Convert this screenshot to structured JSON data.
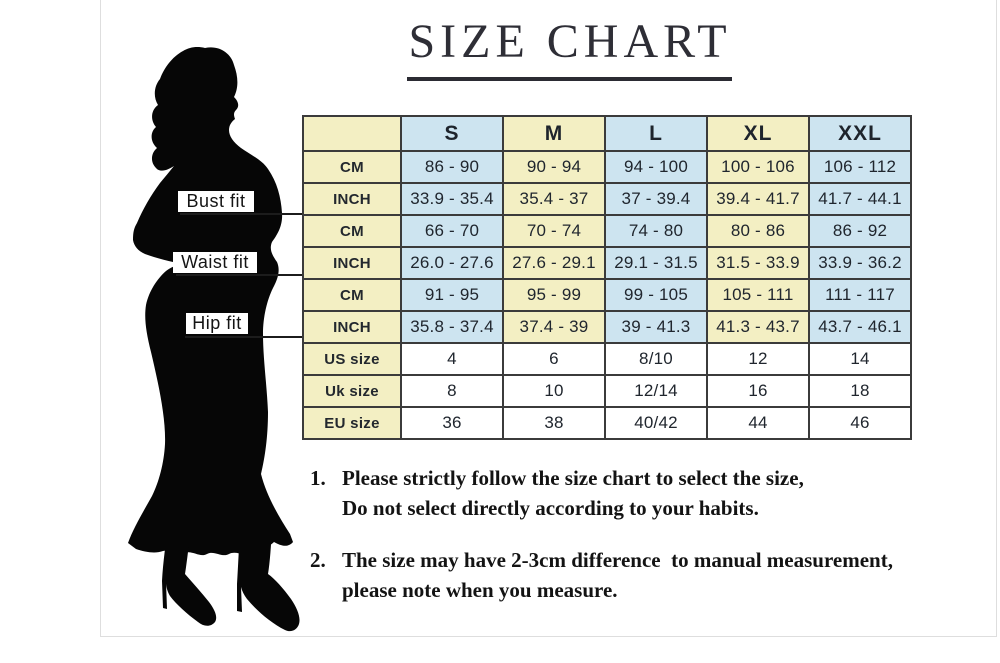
{
  "title": "SIZE CHART",
  "figure": {
    "bust_label": "Bust fit",
    "waist_label": "Waist fit",
    "hip_label": "Hip fit"
  },
  "chart_data": {
    "type": "table",
    "title": "SIZE CHART",
    "columns": [
      "",
      "S",
      "M",
      "L",
      "XL",
      "XXL"
    ],
    "rows": [
      {
        "group": "Bust fit",
        "label": "CM",
        "values": [
          "86 - 90",
          "90 - 94",
          "94 - 100",
          "100 - 106",
          "106 - 112"
        ]
      },
      {
        "group": "Bust fit",
        "label": "INCH",
        "values": [
          "33.9 - 35.4",
          "35.4 - 37",
          "37 - 39.4",
          "39.4 - 41.7",
          "41.7 - 44.1"
        ]
      },
      {
        "group": "Waist fit",
        "label": "CM",
        "values": [
          "66 - 70",
          "70 - 74",
          "74 - 80",
          "80 - 86",
          "86 - 92"
        ]
      },
      {
        "group": "Waist fit",
        "label": "INCH",
        "values": [
          "26.0 - 27.6",
          "27.6 - 29.1",
          "29.1 - 31.5",
          "31.5 - 33.9",
          "33.9 - 36.2"
        ]
      },
      {
        "group": "Hip fit",
        "label": "CM",
        "values": [
          "91 - 95",
          "95 - 99",
          "99 - 105",
          "105 - 111",
          "111 - 117"
        ]
      },
      {
        "group": "Hip fit",
        "label": "INCH",
        "values": [
          "35.8 - 37.4",
          "37.4 - 39",
          "39 - 41.3",
          "41.3 - 43.7",
          "43.7 - 46.1"
        ]
      },
      {
        "group": "",
        "label": "US size",
        "values": [
          "4",
          "6",
          "8/10",
          "12",
          "14"
        ]
      },
      {
        "group": "",
        "label": "Uk size",
        "values": [
          "8",
          "10",
          "12/14",
          "16",
          "18"
        ]
      },
      {
        "group": "",
        "label": "EU size",
        "values": [
          "36",
          "38",
          "40/42",
          "44",
          "46"
        ]
      }
    ],
    "layout": {
      "grid": true,
      "header_row": true,
      "column_color_pattern": [
        "yellow",
        "blue",
        "yellow",
        "blue",
        "yellow",
        "blue"
      ],
      "bottom_rows_white": 3
    }
  },
  "notes": [
    {
      "num": "1.",
      "line1": "Please strictly follow the size chart to select the size,",
      "line2": "Do not select directly according to your habits."
    },
    {
      "num": "2.",
      "line1": "The size may have 2-3cm difference  to manual measurement,",
      "line2": "please note when you measure."
    }
  ],
  "colors": {
    "cell_yellow": "#F3EFC3",
    "cell_blue": "#CDE4F0",
    "cell_white": "#FFFFFF",
    "grid_border": "#3B3B3B",
    "text": "#20262E",
    "title_text": "#2E2E36",
    "silhouette": "#060606"
  }
}
